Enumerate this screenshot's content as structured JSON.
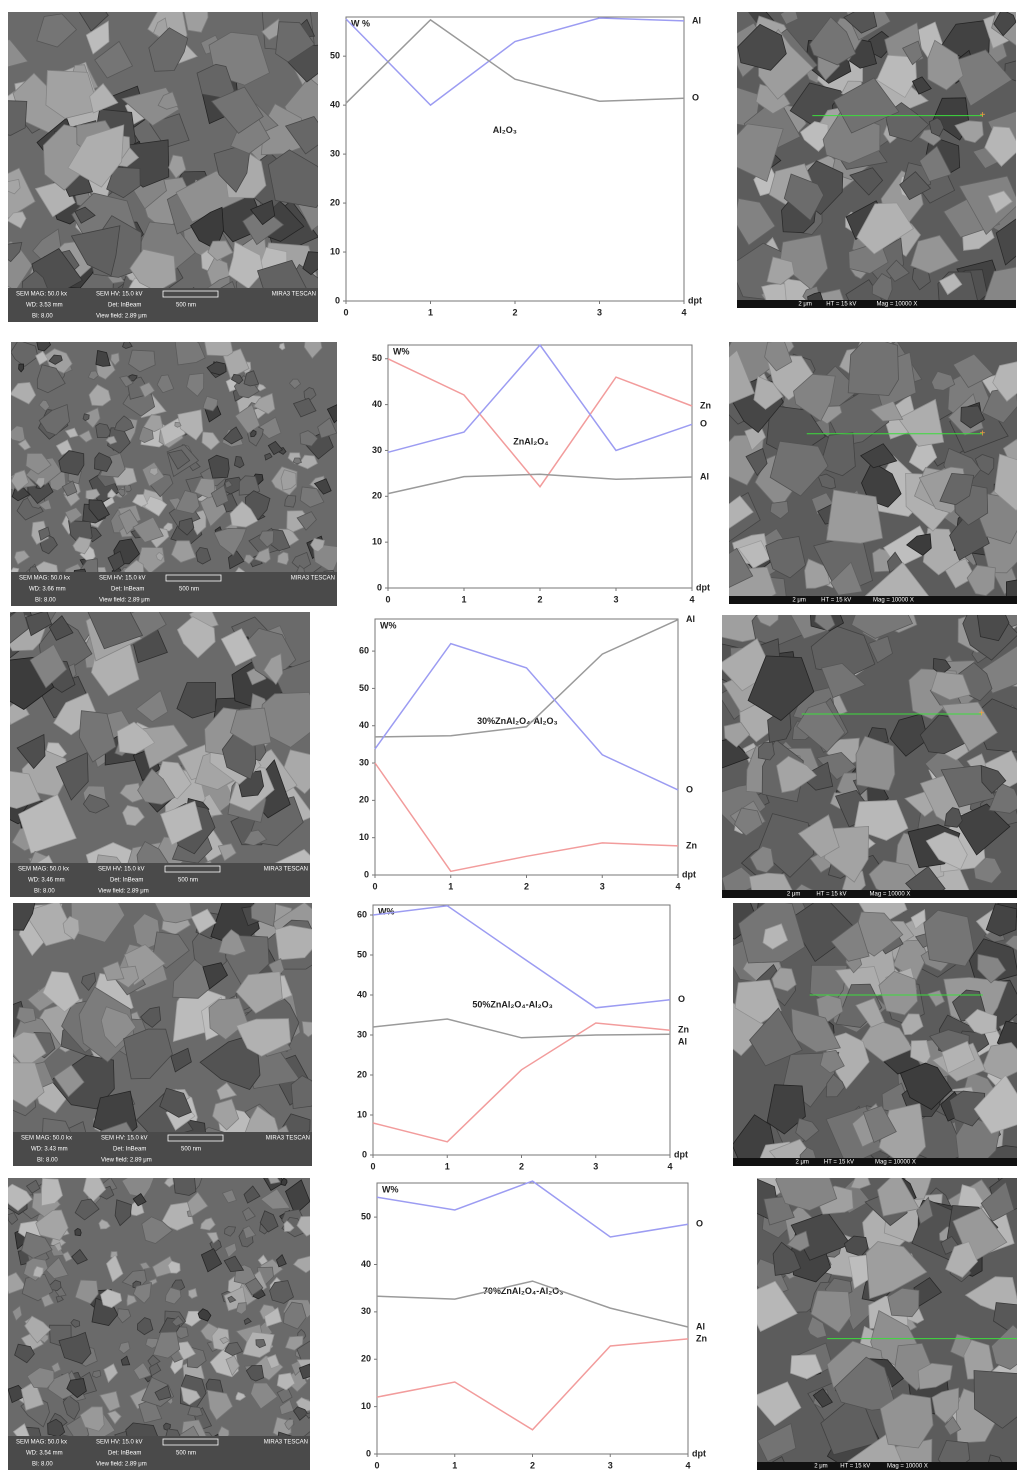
{
  "chart_data": [
    {
      "type": "line",
      "title": "Al₂O₃",
      "y_label": "W %",
      "x_label": "dpt",
      "x": [
        0,
        1,
        2,
        3,
        4
      ],
      "xlim": [
        0,
        4
      ],
      "xticks": [
        0,
        1,
        2,
        3,
        4
      ],
      "ylim": [
        0,
        58
      ],
      "yticks": [
        0,
        10,
        20,
        30,
        40,
        50
      ],
      "series": [
        {
          "name": "Al",
          "color": "#9c9cf2",
          "values": [
            57.6,
            40,
            53,
            57.8,
            57.2
          ]
        },
        {
          "name": "O",
          "color": "#9a9a9a",
          "values": [
            40.4,
            57.4,
            45.3,
            40.8,
            41.4
          ]
        }
      ]
    },
    {
      "type": "line",
      "title": "ZnAl₂O₄",
      "y_label": "W%",
      "x_label": "dpt",
      "x": [
        0,
        1,
        2,
        3,
        4
      ],
      "xlim": [
        0,
        4
      ],
      "xticks": [
        0,
        1,
        2,
        3,
        4
      ],
      "ylim": [
        0,
        53
      ],
      "yticks": [
        0,
        10,
        20,
        30,
        40,
        50
      ],
      "series": [
        {
          "name": "Zn",
          "color": "#f29c9c",
          "values": [
            50,
            42.1,
            22.1,
            46,
            39.7
          ]
        },
        {
          "name": "O",
          "color": "#9c9cf2",
          "values": [
            29.6,
            34,
            53,
            30,
            35.7
          ]
        },
        {
          "name": "Al",
          "color": "#9a9a9a",
          "values": [
            20.6,
            24.3,
            24.8,
            23.7,
            24.2
          ]
        }
      ]
    },
    {
      "type": "line",
      "title": "30%ZnAl₂O₄-Al₂O₃",
      "y_label": "W%",
      "x_label": "dpt",
      "x": [
        0,
        1,
        2,
        3,
        4
      ],
      "xlim": [
        0,
        4
      ],
      "xticks": [
        0,
        1,
        2,
        3,
        4
      ],
      "ylim": [
        0,
        68.6
      ],
      "yticks": [
        0,
        10,
        20,
        30,
        40,
        50,
        60
      ],
      "series": [
        {
          "name": "Al",
          "color": "#9a9a9a",
          "values": [
            37,
            37.3,
            39.7,
            59.2,
            68.4
          ]
        },
        {
          "name": "O",
          "color": "#9c9cf2",
          "values": [
            33.8,
            62,
            55.5,
            32.2,
            22.8
          ]
        },
        {
          "name": "Zn",
          "color": "#f29c9c",
          "values": [
            30,
            1,
            5,
            8.6,
            7.8
          ]
        }
      ]
    },
    {
      "type": "line",
      "title": "50%ZnAl₂O₄-Al₂O₃",
      "y_label": "W%",
      "x_label": "dpt",
      "x": [
        0,
        1,
        2,
        3,
        4
      ],
      "xlim": [
        0,
        4
      ],
      "xticks": [
        0,
        1,
        2,
        3,
        4
      ],
      "ylim": [
        0,
        62.5
      ],
      "yticks": [
        0,
        10,
        20,
        30,
        40,
        50,
        60
      ],
      "series": [
        {
          "name": "O",
          "color": "#9c9cf2",
          "values": [
            60,
            62.3,
            49.5,
            36.8,
            38.8
          ]
        },
        {
          "name": "Zn",
          "color": "#f29c9c",
          "values": [
            8,
            3.3,
            21.3,
            33,
            31.2
          ]
        },
        {
          "name": "Al",
          "color": "#9a9a9a",
          "values": [
            32,
            34,
            29.3,
            30,
            30.2
          ]
        }
      ]
    },
    {
      "type": "line",
      "title": "70%ZnAl₂O₄-Al₂O₃",
      "y_label": "W%",
      "x_label": "dpt",
      "x": [
        0,
        1,
        2,
        3,
        4
      ],
      "xlim": [
        0,
        4
      ],
      "xticks": [
        0,
        1,
        2,
        3,
        4
      ],
      "ylim": [
        0,
        57.2
      ],
      "yticks": [
        0,
        10,
        20,
        30,
        40,
        50
      ],
      "series": [
        {
          "name": "O",
          "color": "#9c9cf2",
          "values": [
            54.2,
            51.5,
            57.6,
            45.8,
            48.5
          ]
        },
        {
          "name": "Al",
          "color": "#9a9a9a",
          "values": [
            33.3,
            32.7,
            36.5,
            30.8,
            26.8
          ]
        },
        {
          "name": "Zn",
          "color": "#f29c9c",
          "values": [
            12,
            15.2,
            5.1,
            22.8,
            24.3
          ]
        }
      ]
    }
  ],
  "sem_panels": [
    {
      "left": {
        "mag": "SEM MAG: 50.0 kx",
        "hv": "SEM HV: 15.0 kV",
        "brand": "MIRA3 TESCAN",
        "wd": "WD: 3.53 mm",
        "det": "Det: InBeam",
        "scale": "500 nm",
        "bi": "BI: 8.00",
        "view": "View field: 2.89 μm"
      },
      "right": {
        "scale": "2 μm",
        "ht": "HT = 15 kV",
        "mag": "Mag = 10000 X"
      }
    },
    {
      "left": {
        "mag": "SEM MAG: 50.0 kx",
        "hv": "SEM HV: 15.0 kV",
        "brand": "MIRA3 TESCAN",
        "wd": "WD: 3.66 mm",
        "det": "Det: InBeam",
        "scale": "500 nm",
        "bi": "BI: 8.00",
        "view": "View field: 2.89 μm"
      },
      "right": {
        "scale": "2 μm",
        "ht": "HT = 15 kV",
        "mag": "Mag = 10000 X"
      }
    },
    {
      "left": {
        "mag": "SEM MAG: 50.0 kx",
        "hv": "SEM HV: 15.0 kV",
        "brand": "MIRA3 TESCAN",
        "wd": "WD: 3.46 mm",
        "det": "Det: InBeam",
        "scale": "500 nm",
        "bi": "BI: 8.00",
        "view": "View field: 2.89 μm"
      },
      "right": {
        "scale": "2 μm",
        "ht": "HT = 15 kV",
        "mag": "Mag = 10000 X"
      }
    },
    {
      "left": {
        "mag": "SEM MAG: 50.0 kx",
        "hv": "SEM HV: 15.0 kV",
        "brand": "MIRA3 TESCAN",
        "wd": "WD: 3.43 mm",
        "det": "Det: InBeam",
        "scale": "500 nm",
        "bi": "BI: 8.00",
        "view": "View field: 2.89 μm"
      },
      "right": {
        "scale": "2 μm",
        "ht": "HT = 15 kV",
        "mag": "Mag = 10000 X"
      }
    },
    {
      "left": {
        "mag": "SEM MAG: 50.0 kx",
        "hv": "SEM HV: 15.0 kV",
        "brand": "MIRA3 TESCAN",
        "wd": "WD: 3.54 mm",
        "det": "Det: InBeam",
        "scale": "500 nm",
        "bi": "BI: 8.00",
        "view": "View field: 2.89 μm"
      },
      "right": {
        "scale": "2 μm",
        "ht": "HT = 15 kV",
        "mag": "Mag = 10000 X"
      }
    }
  ]
}
